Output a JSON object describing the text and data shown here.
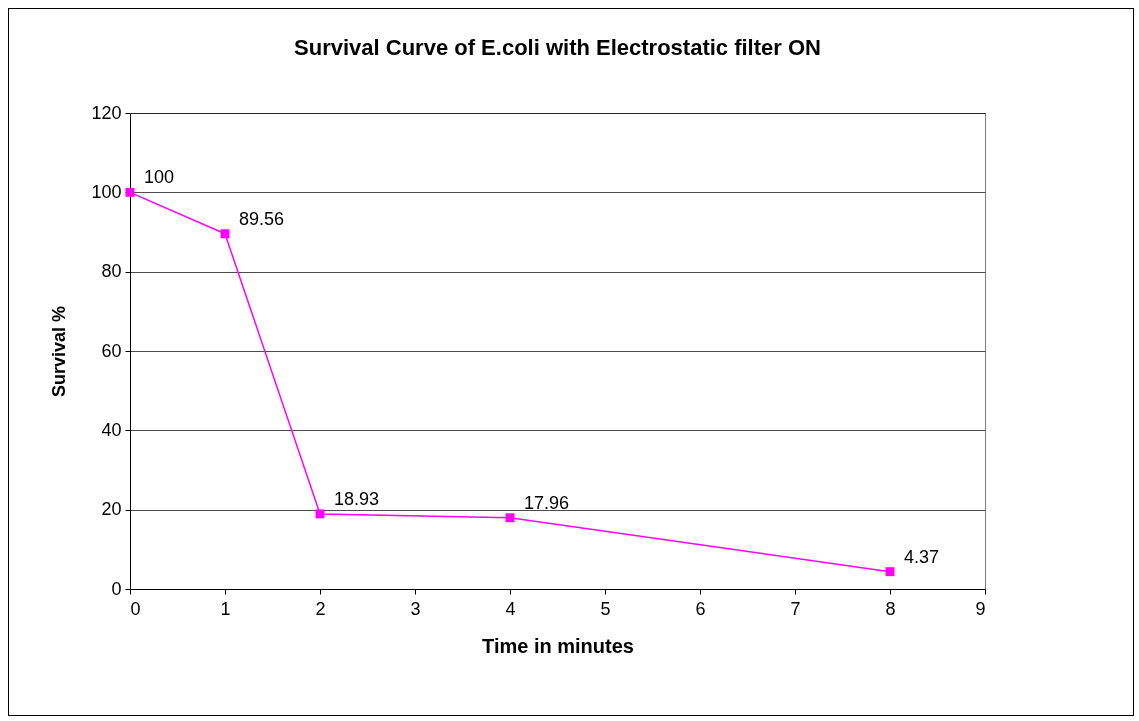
{
  "chart_data": {
    "type": "line",
    "title": "Survival Curve of E.coli with Electrostatic filter ON",
    "xlabel": "Time in minutes",
    "ylabel": "Survival %",
    "x": [
      0,
      1,
      2,
      4,
      8
    ],
    "series": [
      {
        "color": "#ff00ff",
        "values": [
          100,
          89.56,
          18.93,
          17.96,
          4.37
        ]
      }
    ],
    "xlim": [
      0,
      9
    ],
    "xticks": [
      0,
      1,
      2,
      3,
      4,
      5,
      6,
      7,
      8,
      9
    ],
    "ylim": [
      0,
      120
    ],
    "yticks": [
      0,
      20,
      40,
      60,
      80,
      100,
      120
    ],
    "grid": "y",
    "marker": "square",
    "line_style": "solid",
    "data_labels": true,
    "legend": false
  }
}
